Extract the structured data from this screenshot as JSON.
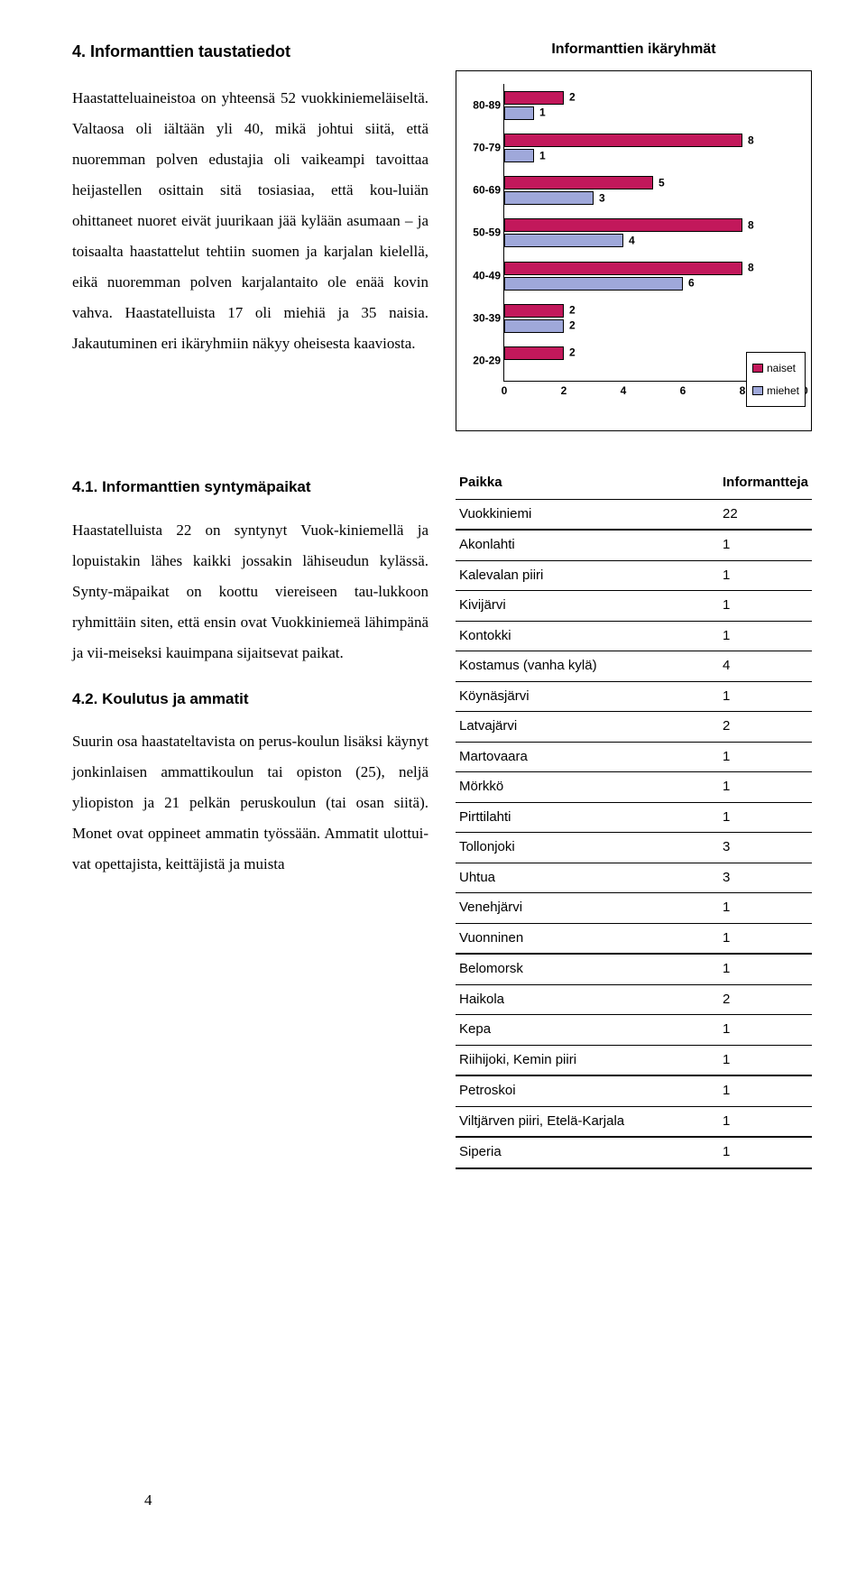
{
  "page": {
    "number": "4"
  },
  "section1": {
    "heading": "4. Informanttien taustatiedot",
    "body": "Haastatteluaineistoa on yhteensä 52 vuokkiniemeläiseltä. Valtaosa oli iältään yli 40, mikä johtui siitä, että nuoremman polven edustajia oli vaikeampi tavoittaa heijastellen osittain sitä tosiasiaa, että kou-luiän ohittaneet nuoret eivät juurikaan jää kylään asumaan – ja toisaalta haastattelut tehtiin suomen ja karjalan kielellä, eikä nuoremman polven karjalantaito ole enää kovin vahva. Haastatelluista 17 oli miehiä ja 35 naisia. Jakautuminen eri ikäryhmiin näkyy oheisesta kaaviosta."
  },
  "chart": {
    "type": "bar-horizontal-grouped",
    "title": "Informanttien ikäryhmät",
    "categories": [
      "80-89",
      "70-79",
      "60-69",
      "50-59",
      "40-49",
      "30-39",
      "20-29"
    ],
    "series": [
      {
        "name": "naiset",
        "color": "#c2185b",
        "values": [
          2,
          8,
          5,
          8,
          8,
          2,
          2
        ]
      },
      {
        "name": "miehet",
        "color": "#9fa8da",
        "values": [
          1,
          1,
          3,
          4,
          6,
          2,
          0
        ]
      }
    ],
    "xlim": [
      0,
      10
    ],
    "xtick_step": 2,
    "xticks": [
      "0",
      "2",
      "4",
      "6",
      "8",
      "10"
    ],
    "background_color": "#ffffff",
    "border_color": "#000000",
    "bar_border": "#000000",
    "label_fontsize": 12,
    "title_fontsize": 16,
    "legend": {
      "items": [
        "naiset",
        "miehet"
      ],
      "colors": [
        "#c2185b",
        "#9fa8da"
      ]
    }
  },
  "section2": {
    "heading": "4.1. Informanttien syntymäpaikat",
    "body": "Haastatelluista 22 on syntynyt Vuok-kiniemellä ja lopuistakin lähes kaikki jossakin lähiseudun kylässä. Synty-mäpaikat on koottu viereiseen tau-lukkoon ryhmittäin siten, että ensin ovat Vuokkiniemeä lähimpänä ja vii-meiseksi kauimpana sijaitsevat paikat."
  },
  "section3": {
    "heading": "4.2. Koulutus ja ammatit",
    "body": "Suurin osa haastateltavista on perus-koulun lisäksi käynyt jonkinlaisen ammattikoulun tai opiston (25), neljä yliopiston ja 21 pelkän peruskoulun (tai osan siitä). Monet ovat oppineet ammatin työssään. Ammatit ulottui-vat opettajista, keittäjistä ja muista"
  },
  "table": {
    "headers": [
      "Paikka",
      "Informantteja"
    ],
    "groups": [
      [
        [
          "Vuokkiniemi",
          "22"
        ]
      ],
      [
        [
          "Akonlahti",
          "1"
        ],
        [
          "Kalevalan piiri",
          "1"
        ],
        [
          "Kivijärvi",
          "1"
        ],
        [
          "Kontokki",
          "1"
        ],
        [
          "Kostamus (vanha kylä)",
          "4"
        ],
        [
          "Köynäsjärvi",
          "1"
        ],
        [
          "Latvajärvi",
          "2"
        ],
        [
          "Martovaara",
          "1"
        ],
        [
          "Mörkkö",
          "1"
        ],
        [
          "Pirttilahti",
          "1"
        ],
        [
          "Tollonjoki",
          "3"
        ],
        [
          "Uhtua",
          "3"
        ],
        [
          "Venehjärvi",
          "1"
        ],
        [
          "Vuonninen",
          "1"
        ]
      ],
      [
        [
          "Belomorsk",
          "1"
        ],
        [
          "Haikola",
          "2"
        ],
        [
          "Kepa",
          "1"
        ],
        [
          "Riihijoki, Kemin piiri",
          "1"
        ]
      ],
      [
        [
          "Petroskoi",
          "1"
        ],
        [
          "Viltjärven piiri, Etelä-Karjala",
          "1"
        ]
      ],
      [
        [
          "Siperia",
          "1"
        ]
      ]
    ]
  }
}
